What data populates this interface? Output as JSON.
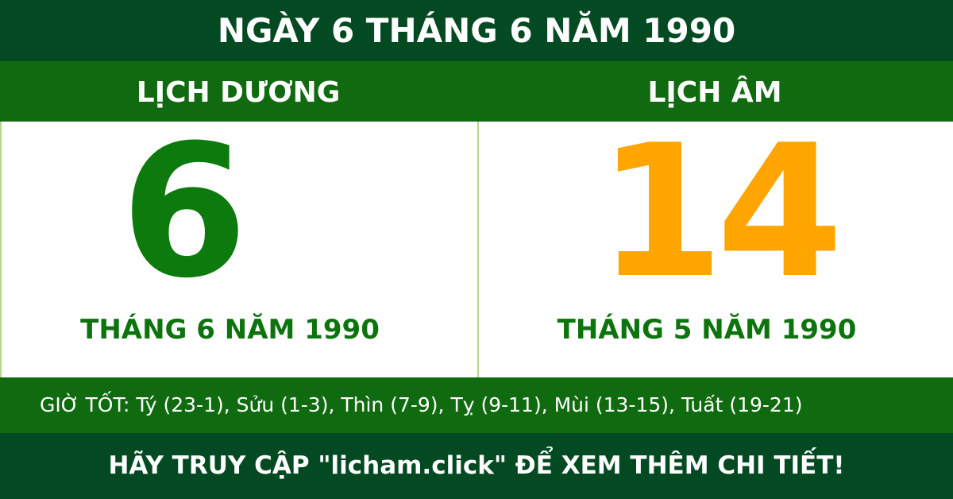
{
  "header": {
    "title": "NGÀY 6 THÁNG 6 NĂM 1990"
  },
  "solar": {
    "heading": "LỊCH DƯƠNG",
    "day": "6",
    "month_year": "THÁNG 6 NĂM 1990"
  },
  "lunar": {
    "heading": "LỊCH ÂM",
    "day": "14",
    "month_year": "THÁNG 5 NĂM 1990"
  },
  "good_hours": "GIỜ TỐT: Tý (23-1), Sửu (1-3), Thìn (7-9), Tỵ (9-11), Mùi (13-15), Tuất (19-21)",
  "footer": "HÃY TRUY CẬP \"licham.click\" ĐỂ XEM THÊM CHI TIẾT!",
  "colors": {
    "dark_green": "#034a22",
    "green": "#106a10",
    "solar_day": "#0d7a0d",
    "lunar_day": "#ffa500"
  }
}
